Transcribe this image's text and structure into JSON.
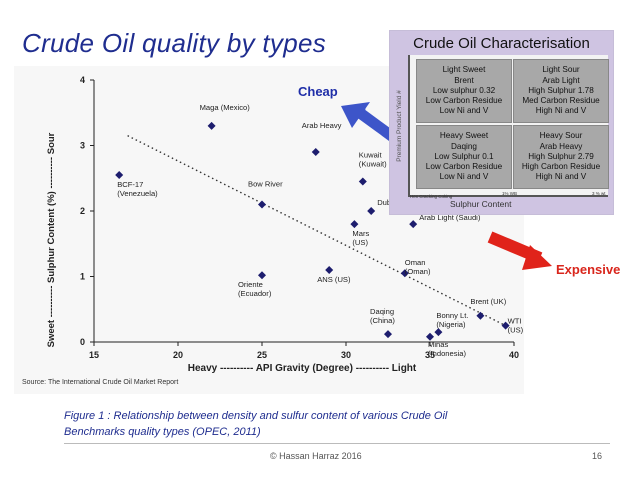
{
  "slide": {
    "title": "Crude  Oil quality by types",
    "caption_line1": "Figure 1 : Relationship between density and sulfur content of various Crude  Oil",
    "caption_line2": "Benchmarks quality types (OPEC, 2011)",
    "footer": "© Hassan Harraz 2016",
    "page_number": "16",
    "cheap_label": "Cheap",
    "expensive_label": "Expensive"
  },
  "inset": {
    "title": "Crude Oil Characterisation",
    "y_axis_label": "Premium Product Yield #",
    "x_axis_label": "Sulphur Content",
    "x_tick_1": "1% WB",
    "x_tick_2": "3 % wt",
    "note": "Hex Cracking Coking",
    "cells": [
      {
        "lines": [
          "Light Sweet",
          "Brent",
          "Low sulphur 0.32",
          "Low Carbon Residue",
          "Low Ni and V"
        ]
      },
      {
        "lines": [
          "Light Sour",
          "Arab Light",
          "High Sulphur 1.78",
          "Med Carbon Residue",
          "High Ni and V"
        ]
      },
      {
        "lines": [
          "Heavy Sweet",
          "Daqing",
          "Low Sulphur 0.1",
          "Low Carbon Residue",
          "Low Ni and V"
        ]
      },
      {
        "lines": [
          "Heavy Sour",
          "Arab Heavy",
          "High Sulphur 2.79",
          "High Carbon Residue",
          "High Ni and V"
        ]
      }
    ]
  },
  "colors": {
    "marker": "#1d1d6e",
    "title": "#1f2d8f",
    "cheap_arrow": "#3d55c9",
    "expensive_arrow": "#e0231a"
  },
  "chart_data": {
    "type": "scatter",
    "title": "",
    "xlabel": "Heavy ---------- API Gravity (Degree) ---------- Light",
    "ylabel": "Sweet ---------- Sulphur Content (%) ---------- Sour",
    "source": "Source: The International Crude Oil Market Report",
    "xlim": [
      15,
      40
    ],
    "ylim": [
      0,
      4
    ],
    "x_ticks": [
      15,
      20,
      25,
      30,
      35,
      40
    ],
    "y_ticks": [
      0,
      1,
      2,
      3,
      4
    ],
    "grid": false,
    "trendline": {
      "style": "dotted",
      "from": [
        17,
        3.15
      ],
      "to": [
        39.5,
        0.25
      ]
    },
    "points": [
      {
        "label": "Maga (Mexico)",
        "x": 22,
        "y": 3.3
      },
      {
        "label": "Arab Heavy",
        "x": 28.2,
        "y": 2.9
      },
      {
        "label": "BCF-17 (Venezuela)",
        "x": 16.5,
        "y": 2.55
      },
      {
        "label": "Kuwait (Kuwait)",
        "x": 31,
        "y": 2.45
      },
      {
        "label": "Bow River",
        "x": 25,
        "y": 2.1
      },
      {
        "label": "Dubai (UAE)",
        "x": 31.5,
        "y": 2.0
      },
      {
        "label": "Mars (US)",
        "x": 30.5,
        "y": 1.8
      },
      {
        "label": "Arab Light (Saudi)",
        "x": 34,
        "y": 1.8
      },
      {
        "label": "ANS (US)",
        "x": 29,
        "y": 1.1
      },
      {
        "label": "Oman(Oman)",
        "x": 33.5,
        "y": 1.05
      },
      {
        "label": "Oriente (Ecuador)",
        "x": 25,
        "y": 1.02
      },
      {
        "label": "Brent (UK)",
        "x": 38,
        "y": 0.4
      },
      {
        "label": "WTI(US)",
        "x": 39.5,
        "y": 0.25
      },
      {
        "label": "Daqing (China)",
        "x": 32.5,
        "y": 0.12
      },
      {
        "label": "Bonny Lt. (Nigeria)",
        "x": 35.5,
        "y": 0.15
      },
      {
        "label": "Minas (Indonesia)",
        "x": 35,
        "y": 0.08
      }
    ]
  }
}
